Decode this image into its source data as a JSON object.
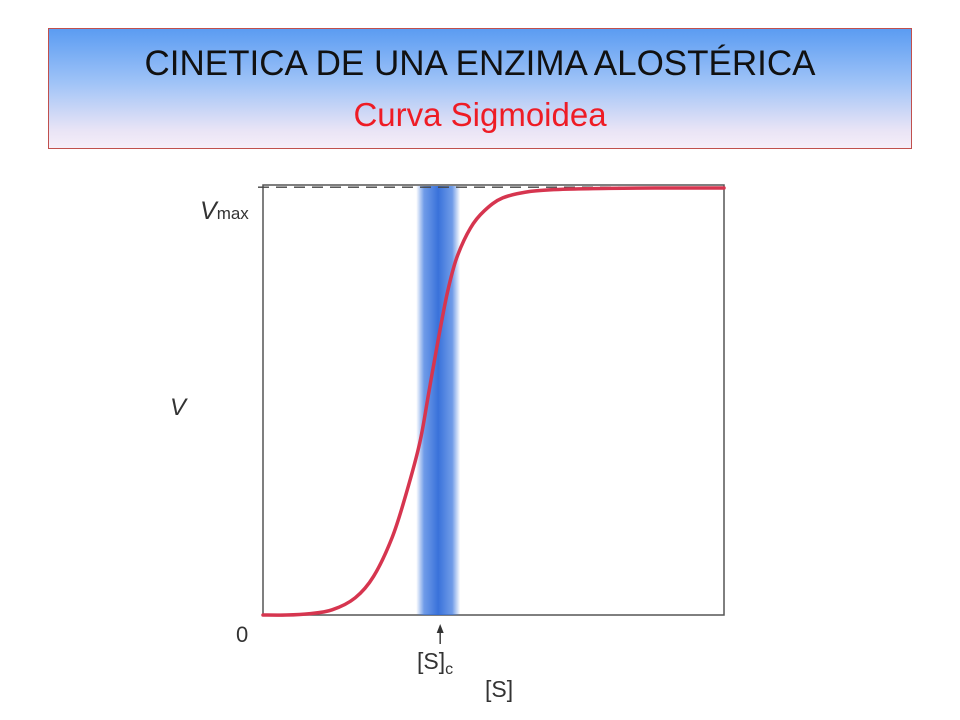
{
  "slide": {
    "title": "CINETICA DE UNA ENZIMA ALOSTÉRICA",
    "subtitle": "Curva Sigmoidea",
    "subtitle_color": "#ee1c25",
    "header_gradient_top": "#5b9cf2",
    "header_gradient_bottom": "#f6eef8"
  },
  "chart_data": {
    "type": "line",
    "title": "",
    "xlabel": "[S]",
    "ylabel": "V",
    "y_origin_label": "0",
    "vmax_label_main": "V",
    "vmax_label_sub": "max",
    "sc_label_main": "[S]",
    "sc_label_sub": "c",
    "xlim": [
      0,
      1
    ],
    "ylim": [
      0,
      1
    ],
    "vmax": 0.995,
    "sc": 0.38,
    "curve_color": "#d6354f",
    "band_color": "#3f7ae0",
    "grid": false,
    "series": [
      {
        "x": [
          0.0,
          0.05,
          0.1,
          0.15,
          0.2,
          0.24,
          0.28,
          0.31,
          0.34,
          0.36,
          0.38,
          0.4,
          0.42,
          0.45,
          0.48,
          0.52,
          0.58,
          0.65,
          0.75,
          0.85,
          1.0
        ],
        "y": [
          0.0,
          0.0,
          0.003,
          0.012,
          0.04,
          0.09,
          0.18,
          0.28,
          0.4,
          0.52,
          0.64,
          0.75,
          0.83,
          0.9,
          0.94,
          0.97,
          0.985,
          0.99,
          0.992,
          0.993,
          0.993
        ]
      }
    ]
  }
}
